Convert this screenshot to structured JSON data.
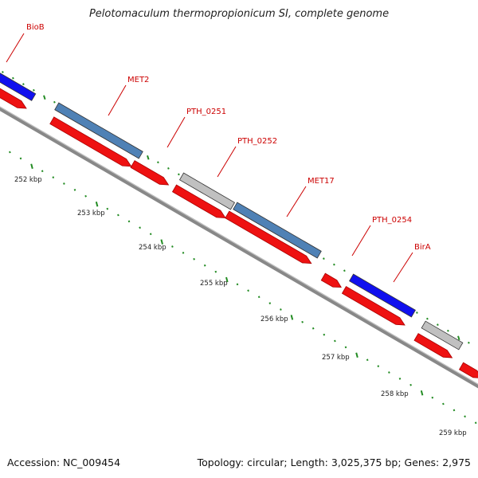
{
  "title": "Pelotomaculum thermopropionicum SI, complete genome",
  "footer": {
    "accession": "Accession: NC_009454",
    "stats": "Topology: circular; Length: 3,025,375 bp; Genes: 2,975"
  },
  "colors": {
    "cds": "#ee1111",
    "backbone": "#8a8a8a",
    "tick": "#228b22",
    "gene_blue": "#1010ee",
    "gene_steel": "#4f81b5",
    "gene_gray": "#c0c0c0",
    "label": "#cc0000"
  },
  "scale_labels": [
    "252 kbp",
    "253 kbp",
    "254 kbp",
    "255 kbp",
    "256 kbp",
    "257 kbp",
    "258 kbp",
    "259 kbp"
  ],
  "gene_labels": [
    {
      "name": "BioB",
      "color": "blue"
    },
    {
      "name": "MET2",
      "color": "steel"
    },
    {
      "name": "PTH_0251",
      "color": "gray"
    },
    {
      "name": "PTH_0252",
      "color": "gray"
    },
    {
      "name": "MET17",
      "color": "steel"
    },
    {
      "name": "PTH_0254",
      "color": "red"
    },
    {
      "name": "BirA",
      "color": "blue"
    }
  ]
}
